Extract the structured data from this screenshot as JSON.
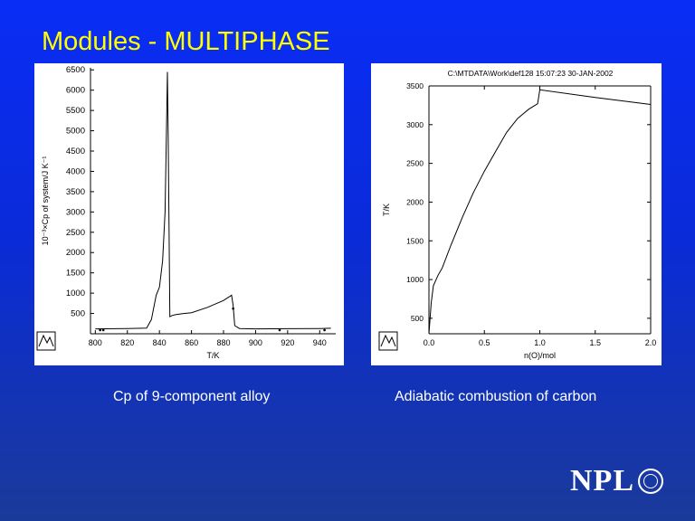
{
  "slide": {
    "title": "Modules - MULTIPHASE",
    "caption_left": "Cp of 9-component alloy",
    "caption_right": "Adiabatic combustion of carbon",
    "logo_text": "NPL",
    "title_color": "#ffff00",
    "logo_seal_icon": "circular-seal-icon"
  },
  "chart_data": [
    {
      "type": "line",
      "title": "",
      "xlabel": "T/K",
      "ylabel": "10⁻³×Cp of system/J K⁻¹",
      "xlim": [
        797,
        950
      ],
      "ylim": [
        0,
        6550
      ],
      "x_ticks": [
        800,
        820,
        840,
        860,
        880,
        900,
        920,
        940
      ],
      "y_ticks": [
        500,
        1000,
        1500,
        2000,
        2500,
        3000,
        3500,
        4000,
        4500,
        5000,
        5500,
        6000,
        6500
      ],
      "grid": false,
      "series": [
        {
          "x": [
            800,
            820,
            832,
            835,
            838,
            840,
            842,
            843.5,
            844.5,
            845,
            845.5,
            846.5,
            848,
            850,
            855,
            860,
            870,
            880,
            885,
            886,
            887,
            890,
            900,
            920,
            940,
            947
          ],
          "y": [
            120,
            130,
            140,
            350,
            950,
            1150,
            1800,
            3000,
            5200,
            6450,
            4800,
            420,
            450,
            470,
            500,
            520,
            650,
            820,
            950,
            700,
            200,
            130,
            120,
            125,
            130,
            135
          ]
        }
      ],
      "markers": {
        "x": [
          803,
          805,
          886,
          915,
          943
        ],
        "y": [
          90,
          90,
          620,
          90,
          90
        ]
      }
    },
    {
      "type": "line",
      "title": "C:\\MTDATA\\Work\\def128  15:07:23 30-JAN-2002",
      "xlabel": "n(O)/mol",
      "ylabel": "T/K",
      "xlim": [
        0.0,
        2.0
      ],
      "ylim": [
        300,
        3500
      ],
      "x_ticks": [
        "0.0",
        "0.5",
        "1.0",
        "1.5",
        "2.0"
      ],
      "y_ticks": [
        500,
        1000,
        1500,
        2000,
        2500,
        3000,
        3500
      ],
      "grid": false,
      "series": [
        {
          "x": [
            0.0,
            0.02,
            0.04,
            0.08,
            0.12,
            0.2,
            0.3,
            0.4,
            0.5,
            0.6,
            0.7,
            0.8,
            0.9,
            0.98,
            1.0,
            1.5,
            2.0
          ],
          "y": [
            300,
            700,
            920,
            1050,
            1150,
            1450,
            1800,
            2120,
            2400,
            2650,
            2900,
            3080,
            3200,
            3270,
            3450,
            3350,
            3260
          ]
        }
      ]
    }
  ]
}
